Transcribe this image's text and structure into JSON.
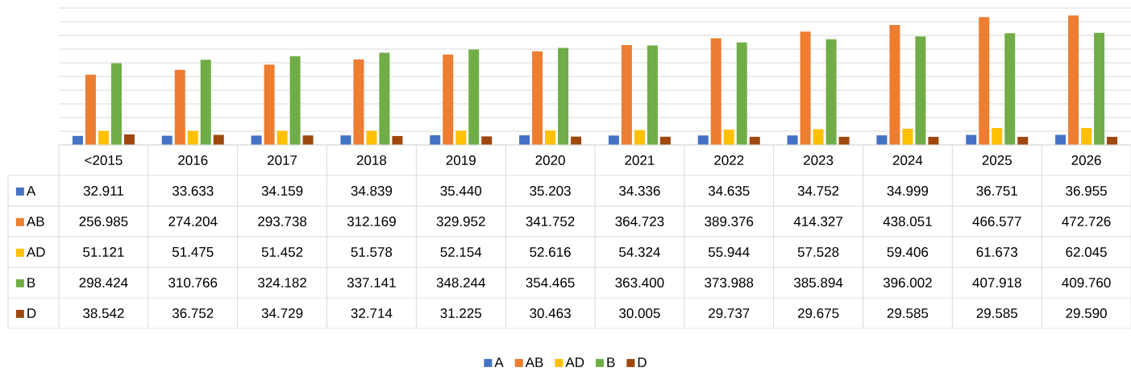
{
  "chart_data": {
    "type": "bar",
    "categories": [
      "<2015",
      "2016",
      "2017",
      "2018",
      "2019",
      "2020",
      "2021",
      "2022",
      "2023",
      "2024",
      "2025",
      "2026"
    ],
    "series": [
      {
        "name": "A",
        "color": "#4472c4",
        "values": [
          32.911,
          33.633,
          34.159,
          34.839,
          35.44,
          35.203,
          34.336,
          34.635,
          34.752,
          34.999,
          36.751,
          36.955
        ],
        "value_labels": [
          "32.911",
          "33.633",
          "34.159",
          "34.839",
          "35.440",
          "35.203",
          "34.336",
          "34.635",
          "34.752",
          "34.999",
          "36.751",
          "36.955"
        ]
      },
      {
        "name": "AB",
        "color": "#ed7d31",
        "values": [
          256.985,
          274.204,
          293.738,
          312.169,
          329.952,
          341.752,
          364.723,
          389.376,
          414.327,
          438.051,
          466.577,
          472.726
        ],
        "value_labels": [
          "256.985",
          "274.204",
          "293.738",
          "312.169",
          "329.952",
          "341.752",
          "364.723",
          "389.376",
          "414.327",
          "438.051",
          "466.577",
          "472.726"
        ]
      },
      {
        "name": "AD",
        "color": "#ffc000",
        "values": [
          51.121,
          51.475,
          51.452,
          51.578,
          52.154,
          52.616,
          54.324,
          55.944,
          57.528,
          59.406,
          61.673,
          62.045
        ],
        "value_labels": [
          "51.121",
          "51.475",
          "51.452",
          "51.578",
          "52.154",
          "52.616",
          "54.324",
          "55.944",
          "57.528",
          "59.406",
          "61.673",
          "62.045"
        ]
      },
      {
        "name": "B",
        "color": "#70ad47",
        "values": [
          298.424,
          310.766,
          324.182,
          337.141,
          348.244,
          354.465,
          363.4,
          373.988,
          385.894,
          396.002,
          407.918,
          409.76
        ],
        "value_labels": [
          "298.424",
          "310.766",
          "324.182",
          "337.141",
          "348.244",
          "354.465",
          "363.400",
          "373.988",
          "385.894",
          "396.002",
          "407.918",
          "409.760"
        ]
      },
      {
        "name": "D",
        "color": "#9e480e",
        "values": [
          38.542,
          36.752,
          34.729,
          32.714,
          31.225,
          30.463,
          30.005,
          29.737,
          29.675,
          29.585,
          29.585,
          29.59
        ],
        "value_labels": [
          "38.542",
          "36.752",
          "34.729",
          "32.714",
          "31.225",
          "30.463",
          "30.005",
          "29.737",
          "29.675",
          "29.585",
          "29.585",
          "29.590"
        ]
      }
    ],
    "ylim": [
      0,
      500
    ],
    "yticks": [
      {
        "value": 0,
        "label": null
      },
      {
        "value": 50,
        "label": null
      },
      {
        "value": 100,
        "label": null
      },
      {
        "value": 150,
        "label": null
      },
      {
        "value": 200,
        "label": null
      },
      {
        "value": 250,
        "label": null
      },
      {
        "value": 300,
        "label": null
      },
      {
        "value": 350,
        "label": null
      },
      {
        "value": 400,
        "label": null
      },
      {
        "value": 450,
        "label": null
      },
      {
        "value": 500,
        "label": null
      }
    ],
    "grid": "y",
    "legend": "bottom",
    "tick_labels": "x"
  }
}
